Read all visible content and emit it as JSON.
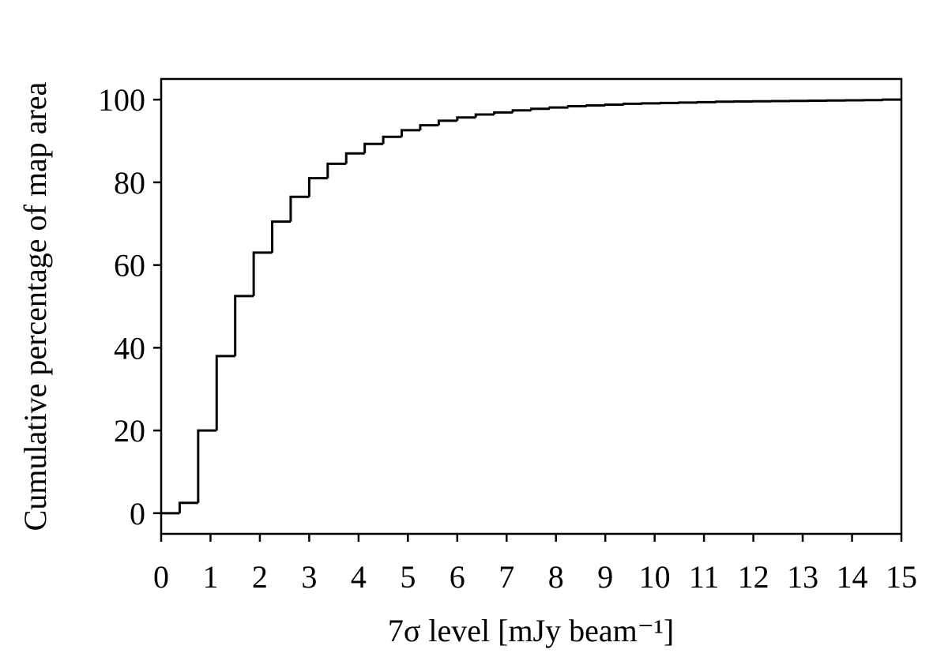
{
  "chart_data": {
    "type": "histogram",
    "histtype": "step",
    "x_label": "7σ level [mJy beam⁻¹]",
    "y_label": "Cumulative percentage of map area",
    "color": "#000000",
    "bins": [
      0,
      0.375,
      0.75,
      1.125,
      1.5,
      1.875,
      2.25,
      2.625,
      3,
      3.375,
      3.75,
      4.125,
      4.5,
      4.875,
      5.25,
      5.625,
      6,
      6.375,
      6.75,
      7.125,
      7.5,
      7.875,
      8.25,
      8.625,
      9,
      9.375,
      9.75,
      10.125,
      10.5,
      10.875,
      11.25,
      11.625,
      12,
      12.375,
      12.75,
      13.125,
      13.5,
      13.875,
      14.25,
      14.625,
      15
    ],
    "values": [
      0,
      2.5,
      20,
      38,
      52.5,
      63,
      70.5,
      76.5,
      81,
      84.5,
      87,
      89.3,
      91,
      92.6,
      93.8,
      94.9,
      95.7,
      96.4,
      96.9,
      97.4,
      97.8,
      98.1,
      98.4,
      98.6,
      98.8,
      99.0,
      99.1,
      99.2,
      99.3,
      99.4,
      99.5,
      99.55,
      99.6,
      99.65,
      99.7,
      99.75,
      99.8,
      99.85,
      99.9,
      100
    ],
    "xlim": [
      0,
      15
    ],
    "ylim": [
      -5,
      105
    ],
    "xticks": [
      0,
      1,
      2,
      3,
      4,
      5,
      6,
      7,
      8,
      9,
      10,
      11,
      12,
      13,
      14,
      15
    ],
    "yticks": [
      0,
      20,
      40,
      60,
      80,
      100
    ],
    "grid": false
  }
}
